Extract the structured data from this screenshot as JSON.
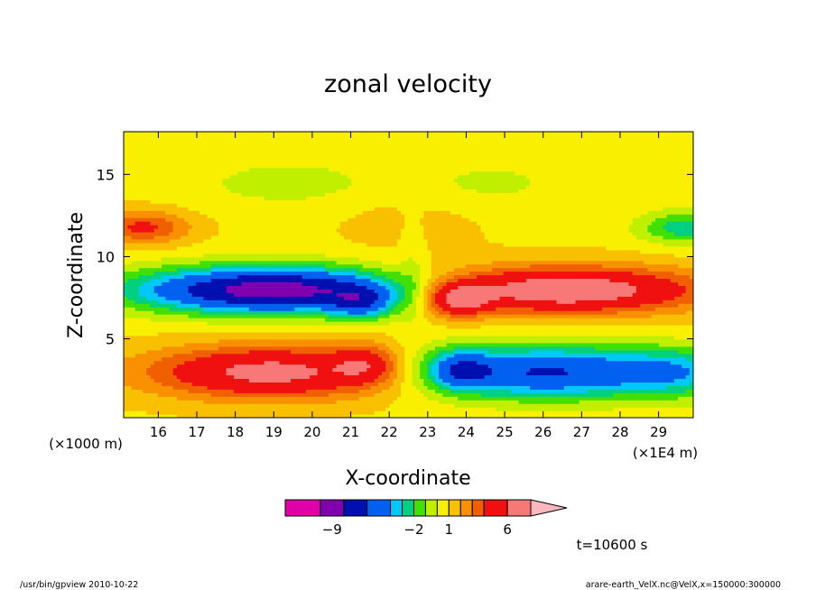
{
  "chart_data": {
    "type": "heatmap",
    "title": "zonal velocity",
    "xlabel": "X-coordinate",
    "ylabel": "Z-coordinate",
    "x_units": "(×1E4 m)",
    "y_units": "(×1000 m)",
    "xlim": [
      15.1,
      29.9
    ],
    "ylim": [
      0.2,
      17.6
    ],
    "x_ticks": [
      16,
      17,
      18,
      19,
      20,
      21,
      22,
      23,
      24,
      25,
      26,
      27,
      28,
      29
    ],
    "y_ticks": [
      5,
      10,
      15
    ],
    "time_label": "t=10600 s",
    "colorbar": {
      "levels": [
        -13,
        -10,
        -8,
        -6,
        -4,
        -3,
        -2,
        -1,
        0,
        1,
        2,
        3,
        4,
        6,
        8,
        10
      ],
      "colors": [
        "#e000a8",
        "#8000b0",
        "#0010b0",
        "#0060f0",
        "#00c8f8",
        "#00d080",
        "#40e000",
        "#c0f000",
        "#f8f000",
        "#f8c000",
        "#f89000",
        "#f06000",
        "#f01010",
        "#f87878",
        "#f8b8c0"
      ],
      "tick_labels": [
        {
          "value": -9,
          "label": "−9"
        },
        {
          "value": -2,
          "label": "−2"
        },
        {
          "value": 1,
          "label": "1"
        },
        {
          "value": 6,
          "label": "6"
        }
      ]
    }
  },
  "footer": {
    "left": "/usr/bin/gpview   2010-10-22",
    "right": "arare-earth_VelX.nc@VelX,x=150000:300000"
  }
}
